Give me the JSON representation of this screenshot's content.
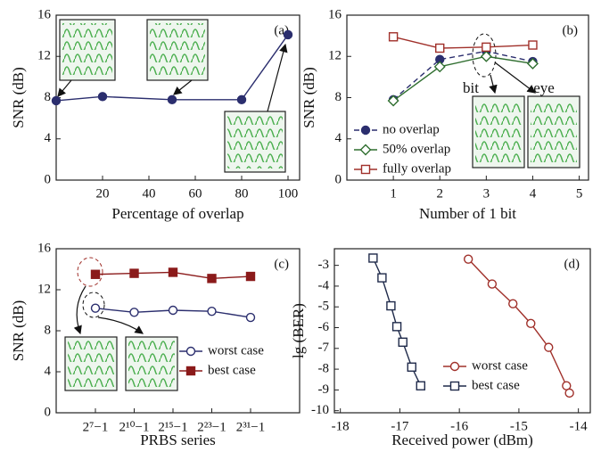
{
  "chart_data": [
    {
      "type": "line",
      "label": "(a)",
      "xlabel": "Percentage of overlap",
      "ylabel": "SNR (dB)",
      "x": [
        0,
        20,
        50,
        80,
        100
      ],
      "series": [
        {
          "color": "#2b2e6e",
          "marker": "circle-filled",
          "values": [
            7.7,
            8.1,
            7.8,
            7.8,
            14.1
          ]
        }
      ],
      "xlim": [
        0,
        105
      ],
      "ylim": [
        0,
        16
      ],
      "xticks": [
        20,
        40,
        60,
        80,
        100
      ],
      "yticks": [
        0,
        4,
        8,
        12,
        16
      ]
    },
    {
      "type": "line",
      "label": "(b)",
      "xlabel": "Number of 1 bit",
      "ylabel": "SNR (dB)",
      "x": [
        1,
        2,
        3,
        4
      ],
      "annotations": [
        "bit",
        "eye"
      ],
      "legend": "lower left",
      "series": [
        {
          "name": "no overlap",
          "color": "#2b2e6e",
          "marker": "circle-filled",
          "dashed": true,
          "values": [
            7.8,
            11.7,
            12.5,
            11.5
          ]
        },
        {
          "name": "50% overlap",
          "color": "#2f6e2f",
          "marker": "diamond-open",
          "values": [
            7.7,
            11.0,
            12.0,
            11.3
          ]
        },
        {
          "name": "fully overlap",
          "color": "#a0302a",
          "marker": "square-open",
          "values": [
            13.9,
            12.8,
            12.9,
            13.1
          ]
        }
      ],
      "xlim": [
        0,
        5.2
      ],
      "ylim": [
        0,
        16
      ],
      "xticks": [
        1,
        2,
        3,
        4,
        5
      ],
      "yticks": [
        0,
        4,
        8,
        12,
        16
      ]
    },
    {
      "type": "line",
      "label": "(c)",
      "xlabel": "PRBS series",
      "ylabel": "SNR (dB)",
      "categories": [
        "2⁷−1",
        "2¹⁰−1",
        "2¹⁵−1",
        "2²³−1",
        "2³¹−1"
      ],
      "legend": "lower right",
      "series": [
        {
          "name": "worst case",
          "color": "#2b2e6e",
          "marker": "circle-open",
          "values": [
            10.2,
            9.8,
            10.0,
            9.9,
            9.3
          ]
        },
        {
          "name": "best case",
          "color": "#8b1a1a",
          "marker": "square-filled",
          "values": [
            13.5,
            13.6,
            13.7,
            13.1,
            13.3
          ]
        }
      ],
      "ylim": [
        0,
        16
      ],
      "yticks": [
        0,
        4,
        8,
        12,
        16
      ]
    },
    {
      "type": "line",
      "label": "(d)",
      "xlabel": "Received power (dBm)",
      "ylabel": "lg (BER)",
      "legend": "lower right",
      "series": [
        {
          "name": "worst case",
          "color": "#a0302a",
          "marker": "circle-open",
          "x": [
            -15.85,
            -15.45,
            -15.1,
            -14.8,
            -14.5,
            -14.2,
            -14.15
          ],
          "values": [
            -2.7,
            -3.9,
            -4.85,
            -5.8,
            -6.95,
            -8.8,
            -9.15
          ]
        },
        {
          "name": "best case",
          "color": "#1f2a4a",
          "marker": "square-open",
          "x": [
            -17.45,
            -17.3,
            -17.15,
            -17.05,
            -16.95,
            -16.8,
            -16.65
          ],
          "values": [
            -2.65,
            -3.6,
            -4.95,
            -5.95,
            -6.7,
            -7.9,
            -8.8
          ]
        }
      ],
      "xlim": [
        -18.1,
        -13.8
      ],
      "ylim": [
        -10.1,
        -2.2
      ],
      "xticks": [
        -18,
        -17,
        -16,
        -15,
        -14
      ],
      "yticks": [
        -3,
        -4,
        -5,
        -6,
        -7,
        -8,
        -9,
        -10
      ]
    }
  ]
}
